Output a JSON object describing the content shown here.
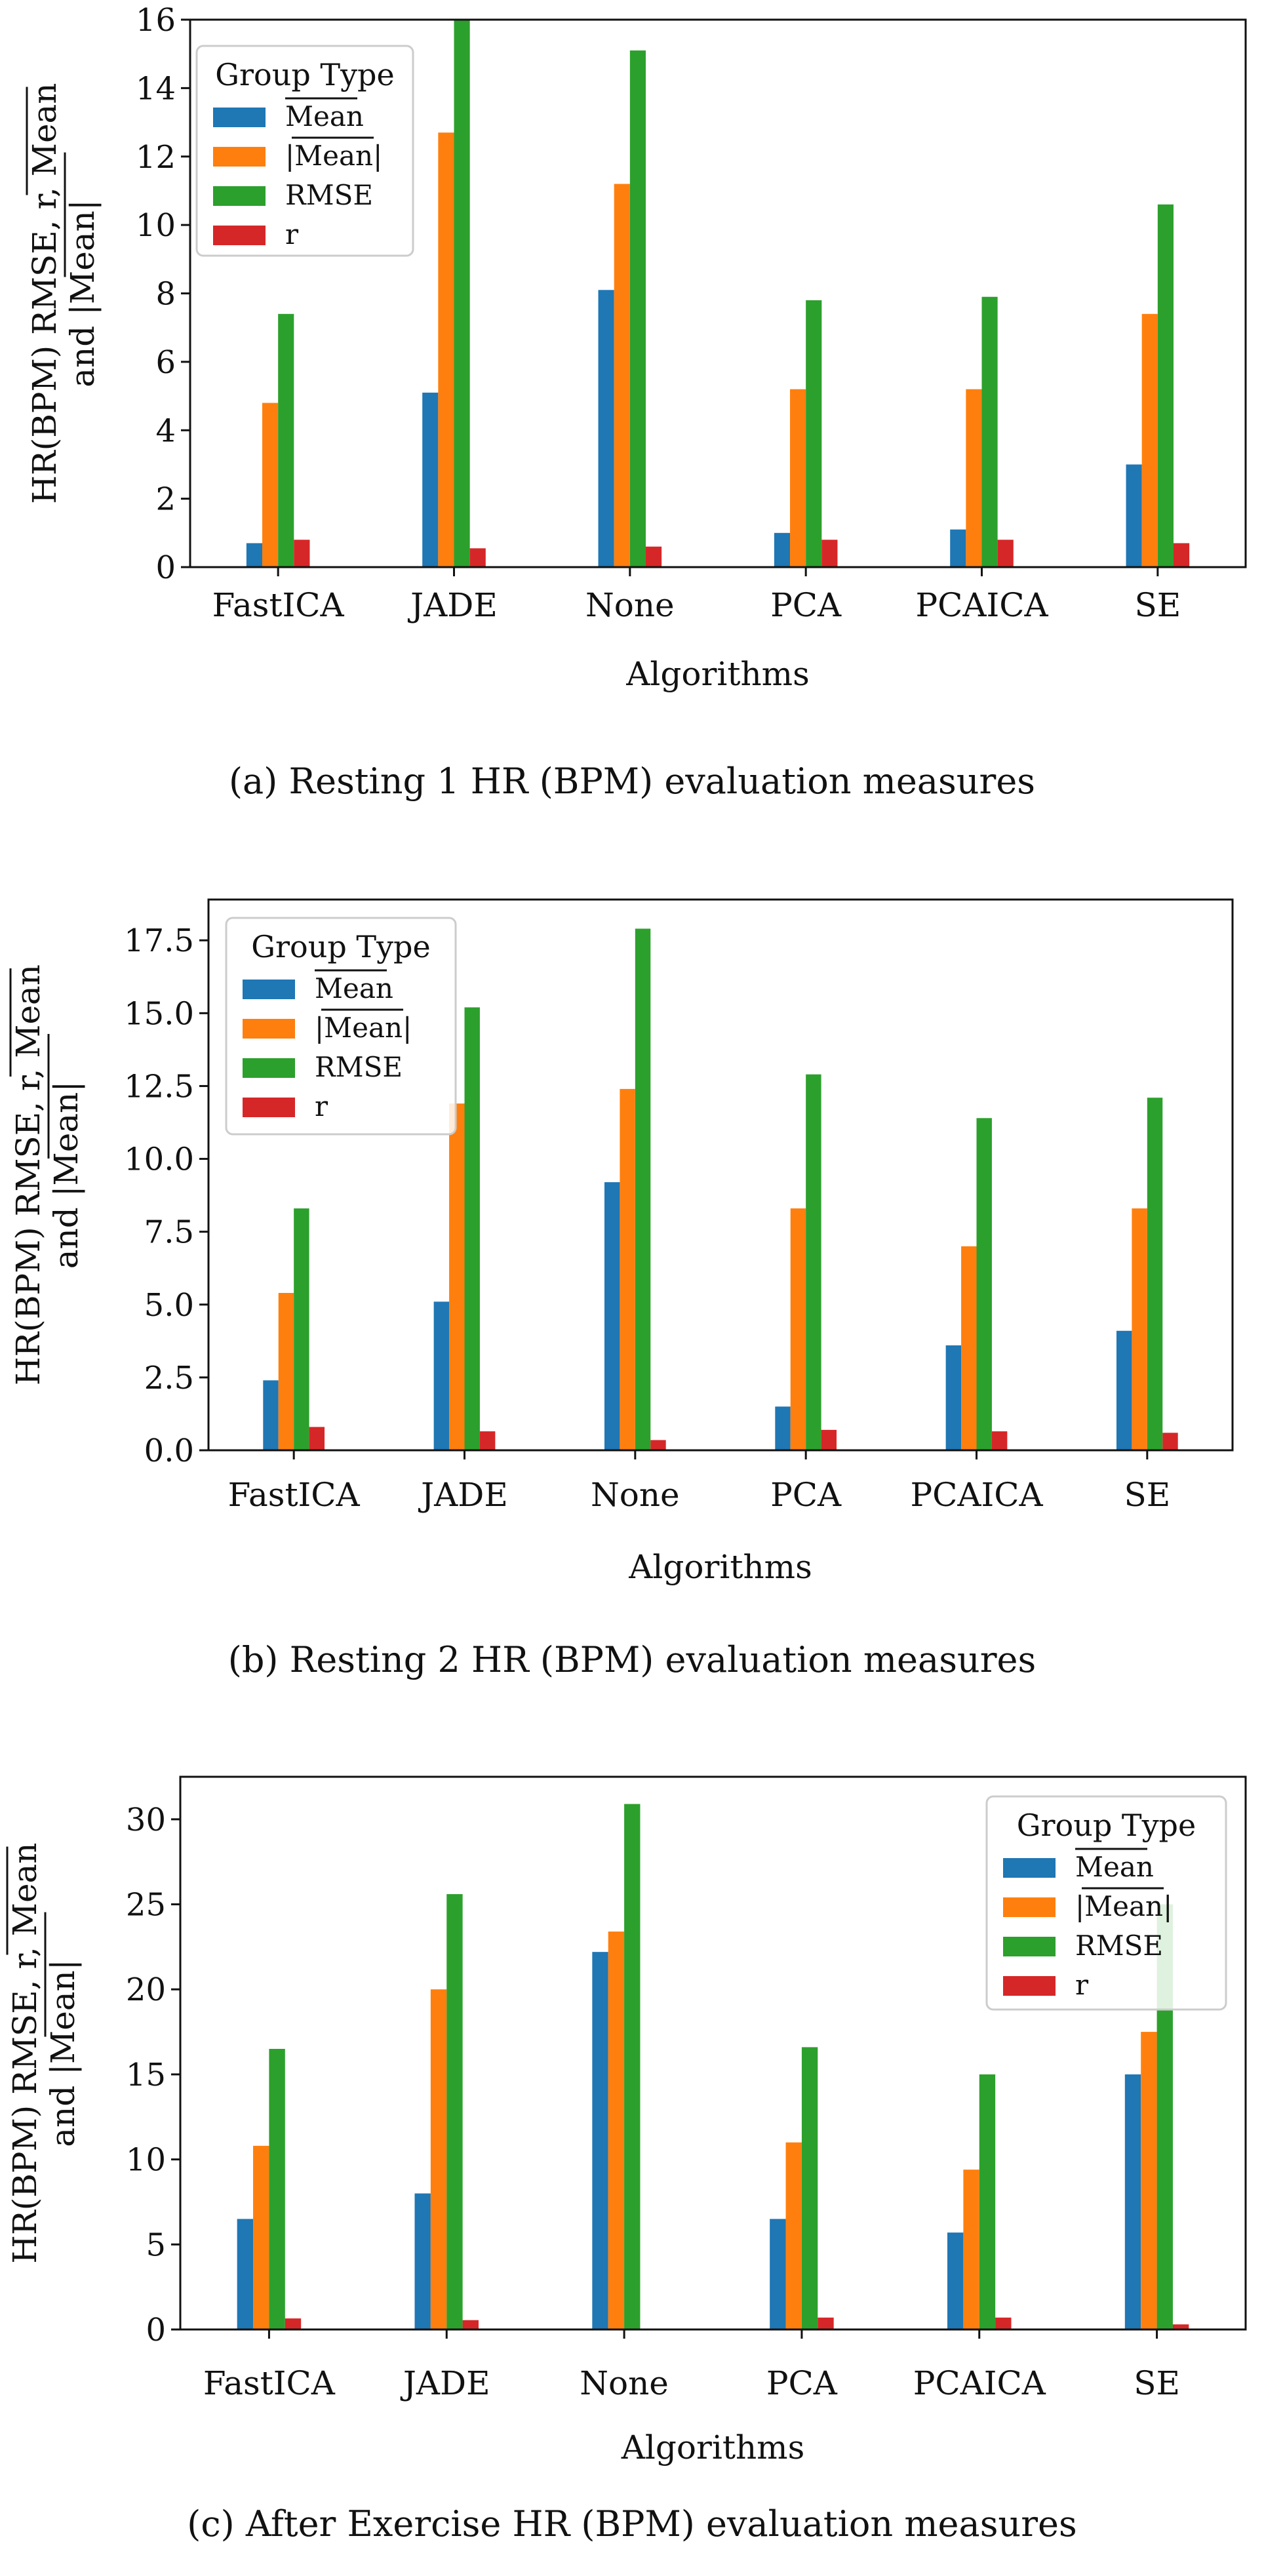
{
  "chart_data": [
    {
      "type": "bar",
      "caption": "(a) Resting 1 HR (BPM) evaluation measures",
      "xlabel": "Algorithms",
      "ylabel_line1": "HR(BPM) RMSE, r, Mean",
      "ylabel_line2": "and |Mean|",
      "categories": [
        "FastICA",
        "JADE",
        "None",
        "PCA",
        "PCAICA",
        "SE"
      ],
      "ylim": [
        0,
        16
      ],
      "yticks": [
        0,
        2,
        4,
        6,
        8,
        10,
        12,
        14,
        16
      ],
      "ytick_labels": [
        "0",
        "2",
        "4",
        "6",
        "8",
        "10",
        "12",
        "14",
        "16"
      ],
      "legend": {
        "title": "Group Type",
        "placement": "top-left",
        "entries": [
          "Mean",
          "|Mean|",
          "RMSE",
          "r"
        ]
      },
      "series": [
        {
          "name": "Mean",
          "color": "#1f77b4",
          "values": [
            0.7,
            5.1,
            8.1,
            1.0,
            1.1,
            3.0
          ]
        },
        {
          "name": "|Mean|",
          "color": "#ff7f0e",
          "values": [
            4.8,
            12.7,
            11.2,
            5.2,
            5.2,
            7.4
          ]
        },
        {
          "name": "RMSE",
          "color": "#2ca02c",
          "values": [
            7.4,
            16.0,
            15.1,
            7.8,
            7.9,
            10.6
          ]
        },
        {
          "name": "r",
          "color": "#d62728",
          "values": [
            0.8,
            0.55,
            0.6,
            0.8,
            0.8,
            0.7
          ]
        }
      ]
    },
    {
      "type": "bar",
      "caption": "(b) Resting 2 HR (BPM) evaluation measures",
      "xlabel": "Algorithms",
      "ylabel_line1": "HR(BPM) RMSE, r, Mean",
      "ylabel_line2": "and |Mean|",
      "categories": [
        "FastICA",
        "JADE",
        "None",
        "PCA",
        "PCAICA",
        "SE"
      ],
      "ylim": [
        0,
        18.9
      ],
      "yticks": [
        0,
        2.5,
        5,
        7.5,
        10,
        12.5,
        15,
        17.5
      ],
      "ytick_labels": [
        "0.0",
        "2.5",
        "5.0",
        "7.5",
        "10.0",
        "12.5",
        "15.0",
        "17.5"
      ],
      "legend": {
        "title": "Group Type",
        "placement": "top-left",
        "entries": [
          "Mean",
          "|Mean|",
          "RMSE",
          "r"
        ]
      },
      "series": [
        {
          "name": "Mean",
          "color": "#1f77b4",
          "values": [
            2.4,
            5.1,
            9.2,
            1.5,
            3.6,
            4.1
          ]
        },
        {
          "name": "|Mean|",
          "color": "#ff7f0e",
          "values": [
            5.4,
            11.9,
            12.4,
            8.3,
            7.0,
            8.3
          ]
        },
        {
          "name": "RMSE",
          "color": "#2ca02c",
          "values": [
            8.3,
            15.2,
            17.9,
            12.9,
            11.4,
            12.1
          ]
        },
        {
          "name": "r",
          "color": "#d62728",
          "values": [
            0.8,
            0.65,
            0.35,
            0.7,
            0.65,
            0.6
          ]
        }
      ]
    },
    {
      "type": "bar",
      "caption": "(c) After Exercise HR (BPM) evaluation measures",
      "xlabel": "Algorithms",
      "ylabel_line1": "HR(BPM) RMSE, r, Mean",
      "ylabel_line2": "and |Mean|",
      "categories": [
        "FastICA",
        "JADE",
        "None",
        "PCA",
        "PCAICA",
        "SE"
      ],
      "ylim": [
        0,
        32.5
      ],
      "yticks": [
        0,
        5,
        10,
        15,
        20,
        25,
        30
      ],
      "ytick_labels": [
        "0",
        "5",
        "10",
        "15",
        "20",
        "25",
        "30"
      ],
      "legend": {
        "title": "Group Type",
        "placement": "top-right",
        "entries": [
          "Mean",
          "|Mean|",
          "RMSE",
          "r"
        ]
      },
      "series": [
        {
          "name": "Mean",
          "color": "#1f77b4",
          "values": [
            6.5,
            8.0,
            22.2,
            6.5,
            5.7,
            15.0
          ]
        },
        {
          "name": "|Mean|",
          "color": "#ff7f0e",
          "values": [
            10.8,
            20.0,
            23.4,
            11.0,
            9.4,
            17.5
          ]
        },
        {
          "name": "RMSE",
          "color": "#2ca02c",
          "values": [
            16.5,
            25.6,
            30.9,
            16.6,
            15.0,
            25.0
          ]
        },
        {
          "name": "r",
          "color": "#d62728",
          "values": [
            0.65,
            0.55,
            0.0,
            0.7,
            0.7,
            0.3
          ]
        }
      ]
    }
  ]
}
